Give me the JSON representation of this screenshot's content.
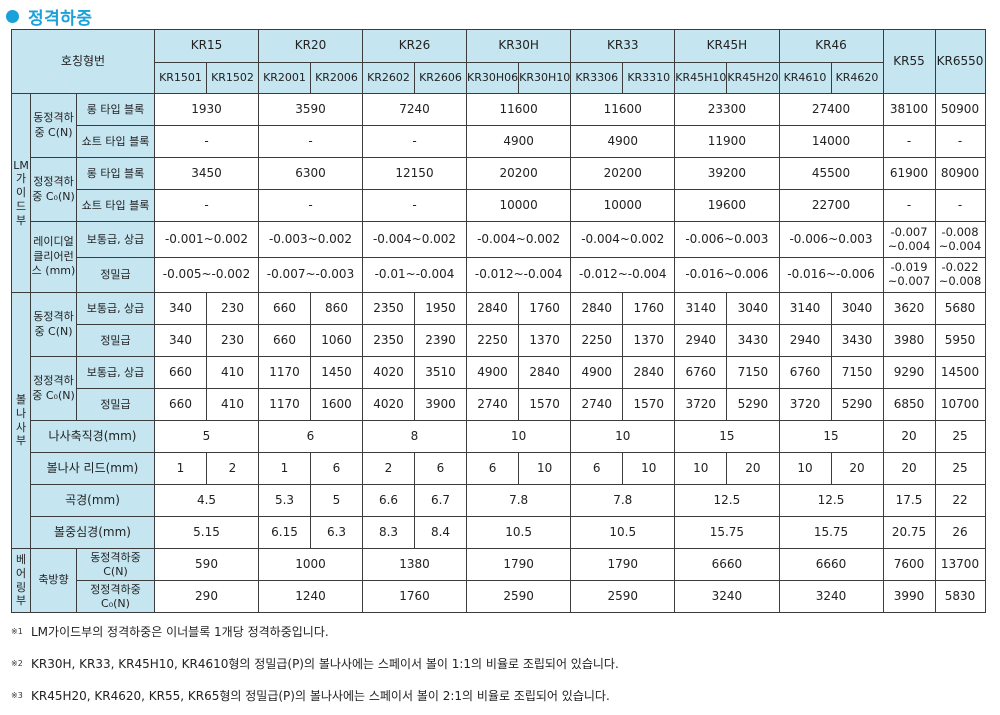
{
  "title": "정격하중",
  "header": {
    "name_label": "호칭형번",
    "groups": [
      {
        "label": "KR15",
        "models": [
          "KR1501",
          "KR1502"
        ]
      },
      {
        "label": "KR20",
        "models": [
          "KR2001",
          "KR2006"
        ]
      },
      {
        "label": "KR26",
        "models": [
          "KR2602",
          "KR2606"
        ]
      },
      {
        "label": "KR30H",
        "models": [
          "KR30H06",
          "KR30H10"
        ]
      },
      {
        "label": "KR33",
        "models": [
          "KR3306",
          "KR3310"
        ]
      },
      {
        "label": "KR45H",
        "models": [
          "KR45H10",
          "KR45H20"
        ]
      },
      {
        "label": "KR46",
        "models": [
          "KR4610",
          "KR4620"
        ]
      }
    ],
    "singles": [
      "KR55",
      "KR6550"
    ]
  },
  "sections": {
    "lm_guide": "LM가이드부",
    "ball_screw": "볼나사부",
    "bearing": "베어링부"
  },
  "labels": {
    "dynamic_load": "동정격하중 C(N)",
    "static_load": "정정격하중 C₀(N)",
    "long_block": "롱 타입 블록",
    "short_block": "쇼트 타입 블록",
    "radial_clearance": "레이디얼클리어런스 (mm)",
    "normal_grade": "보통급, 상급",
    "precision_grade": "정밀급",
    "shaft_dia": "나사축직경(mm)",
    "lead": "볼나사 리드(mm)",
    "root_dia": "곡경(mm)",
    "ball_center_dia": "볼중심경(mm)",
    "axial": "축방향",
    "bearing_dynamic": "동정격하중 C(N)",
    "bearing_static": "정정격하중 C₀(N)"
  },
  "rows": {
    "lm_dyn_long": [
      "1930",
      "3590",
      "7240",
      "11600",
      "11600",
      "23300",
      "27400",
      "38100",
      "50900"
    ],
    "lm_dyn_short": [
      "-",
      "-",
      "-",
      "4900",
      "4900",
      "11900",
      "14000",
      "-",
      "-"
    ],
    "lm_sta_long": [
      "3450",
      "6300",
      "12150",
      "20200",
      "20200",
      "39200",
      "45500",
      "61900",
      "80900"
    ],
    "lm_sta_short": [
      "-",
      "-",
      "-",
      "10000",
      "10000",
      "19600",
      "22700",
      "-",
      "-"
    ],
    "clear_normal": [
      "-0.001~0.002",
      "-0.003~0.002",
      "-0.004~0.002",
      "-0.004~0.002",
      "-0.004~0.002",
      "-0.006~0.003",
      "-0.006~0.003"
    ],
    "clear_normal_kr55": [
      "-0.007",
      "~0.004"
    ],
    "clear_normal_kr6550": [
      "-0.008",
      "~0.004"
    ],
    "clear_precision": [
      "-0.005~-0.002",
      "-0.007~-0.003",
      "-0.01~-0.004",
      "-0.012~-0.004",
      "-0.012~-0.004",
      "-0.016~0.006",
      "-0.016~-0.006"
    ],
    "clear_precision_kr55": [
      "-0.019",
      "~0.007"
    ],
    "clear_precision_kr6550": [
      "-0.022",
      "~0.008"
    ],
    "bs_dyn_normal": [
      "340",
      "230",
      "660",
      "860",
      "2350",
      "1950",
      "2840",
      "1760",
      "2840",
      "1760",
      "3140",
      "3040",
      "3140",
      "3040",
      "3620",
      "5680"
    ],
    "bs_dyn_precision": [
      "340",
      "230",
      "660",
      "1060",
      "2350",
      "2390",
      "2250",
      "1370",
      "2250",
      "1370",
      "2940",
      "3430",
      "2940",
      "3430",
      "3980",
      "5950"
    ],
    "bs_sta_normal": [
      "660",
      "410",
      "1170",
      "1450",
      "4020",
      "3510",
      "4900",
      "2840",
      "4900",
      "2840",
      "6760",
      "7150",
      "6760",
      "7150",
      "9290",
      "14500"
    ],
    "bs_sta_precision": [
      "660",
      "410",
      "1170",
      "1600",
      "4020",
      "3900",
      "2740",
      "1570",
      "2740",
      "1570",
      "3720",
      "5290",
      "3720",
      "5290",
      "6850",
      "10700"
    ],
    "shaft_dia": [
      "5",
      "6",
      "8",
      "10",
      "10",
      "15",
      "15",
      "20",
      "25"
    ],
    "lead": [
      "1",
      "2",
      "1",
      "6",
      "2",
      "6",
      "6",
      "10",
      "6",
      "10",
      "10",
      "20",
      "10",
      "20",
      "20",
      "25"
    ],
    "root_dia_kr15": "4.5",
    "root_dia_kr20": [
      "5.3",
      "5"
    ],
    "root_dia_kr26": [
      "6.6",
      "6.7"
    ],
    "root_dia_rest": [
      "7.8",
      "7.8",
      "12.5",
      "12.5",
      "17.5",
      "22"
    ],
    "ball_center_kr15": "5.15",
    "ball_center_kr20": [
      "6.15",
      "6.3"
    ],
    "ball_center_kr26": [
      "8.3",
      "8.4"
    ],
    "ball_center_rest": [
      "10.5",
      "10.5",
      "15.75",
      "15.75",
      "20.75",
      "26"
    ],
    "bearing_dyn": [
      "590",
      "1000",
      "1380",
      "1790",
      "1790",
      "6660",
      "6660",
      "7600",
      "13700"
    ],
    "bearing_sta": [
      "290",
      "1240",
      "1760",
      "2590",
      "2590",
      "3240",
      "3240",
      "3990",
      "5830"
    ]
  },
  "notes": [
    {
      "mark": "※1",
      "text": "LM가이드부의 정격하중은 이너블록 1개당 정격하중입니다."
    },
    {
      "mark": "※2",
      "text": "KR30H, KR33, KR45H10, KR4610형의 정밀급(P)의 볼나사에는 스페이서 볼이 1:1의 비율로 조립되어 있습니다."
    },
    {
      "mark": "※3",
      "text": "KR45H20, KR4620, KR55, KR65형의 정밀급(P)의 볼나사에는 스페이서 볼이 2:1의 비율로 조립되어 있습니다."
    }
  ]
}
